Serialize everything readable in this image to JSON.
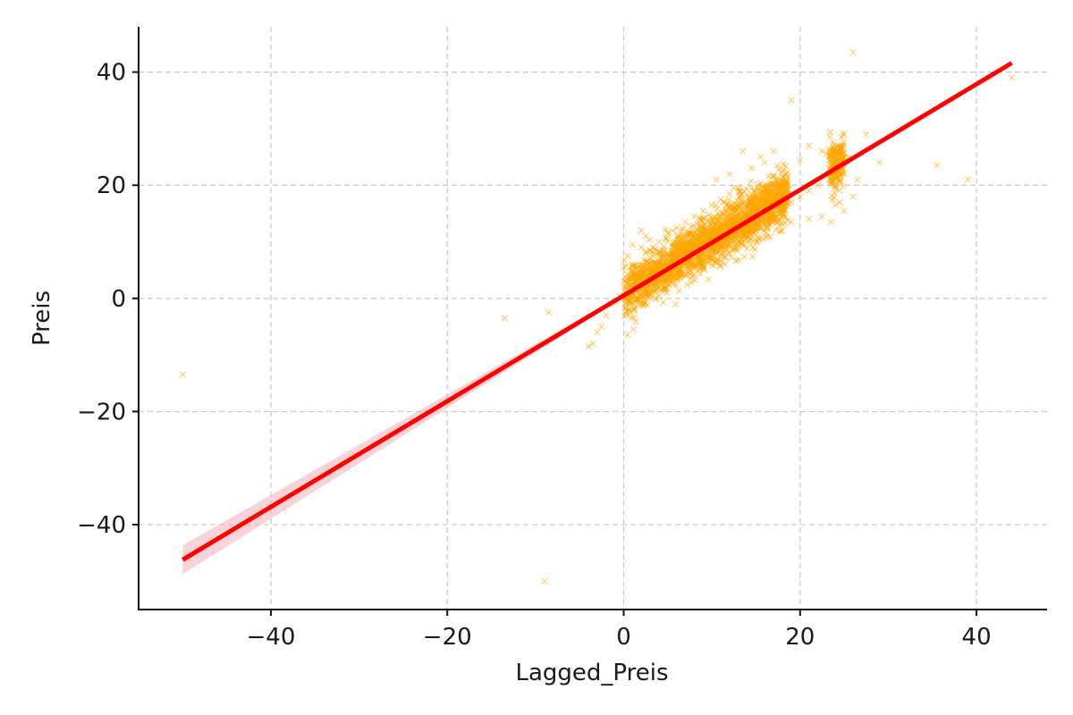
{
  "chart_data": {
    "type": "scatter",
    "title": "",
    "xlabel": "Lagged_Preis",
    "ylabel": "Preis",
    "xlim": [
      -55,
      48
    ],
    "ylim": [
      -55,
      48
    ],
    "x_ticks": [
      -40,
      -20,
      0,
      20,
      40
    ],
    "y_ticks": [
      -40,
      -20,
      0,
      20,
      40
    ],
    "x_tick_labels": [
      "−40",
      "−20",
      "0",
      "20",
      "40"
    ],
    "y_tick_labels": [
      "−40",
      "−20",
      "0",
      "20",
      "40"
    ],
    "grid": true,
    "legend": "none",
    "colors": {
      "points": "#FFA500",
      "regression_line": "#FF0000",
      "confidence_band": "#F7B6BD"
    },
    "marker": "x",
    "regression_line": {
      "x": [
        -50,
        44
      ],
      "y": [
        -46.2,
        41.6
      ]
    },
    "cluster": {
      "x_range": [
        0,
        25
      ],
      "slope": 0.95,
      "intercept": 0.8,
      "spread": 2.2,
      "count": 2500
    },
    "series": [
      {
        "values": [
          [
            -50,
            -13.5
          ],
          [
            -13.5,
            -3.5
          ],
          [
            -8.5,
            -2.5
          ],
          [
            -9,
            -50
          ],
          [
            -4,
            -8.5
          ],
          [
            -3.5,
            -8
          ],
          [
            -2.5,
            -5
          ],
          [
            -2,
            -3
          ],
          [
            -1.5,
            -1
          ],
          [
            -1,
            -0.5
          ],
          [
            -3,
            -6
          ],
          [
            -0.5,
            0.5
          ],
          [
            26,
            43.5
          ],
          [
            19,
            35
          ],
          [
            44,
            39
          ],
          [
            39,
            21
          ],
          [
            35.5,
            23.5
          ],
          [
            29,
            24
          ],
          [
            27.5,
            29
          ],
          [
            26,
            18
          ],
          [
            25,
            15.5
          ],
          [
            23.5,
            13.5
          ],
          [
            24.5,
            17
          ],
          [
            22.5,
            14.5
          ],
          [
            21,
            14
          ],
          [
            22.5,
            26
          ],
          [
            21,
            27
          ],
          [
            20,
            24.5
          ],
          [
            23,
            25.5
          ],
          [
            25.5,
            25
          ],
          [
            24,
            16.5
          ],
          [
            26.5,
            21
          ],
          [
            25,
            22
          ],
          [
            13.5,
            26
          ],
          [
            14.5,
            23
          ],
          [
            15.5,
            25
          ],
          [
            17,
            26
          ],
          [
            12,
            22
          ],
          [
            10.5,
            21
          ],
          [
            16,
            24
          ],
          [
            0,
            5.5
          ],
          [
            0.5,
            7.5
          ],
          [
            1,
            9.5
          ],
          [
            2,
            12
          ],
          [
            0.3,
            2.5
          ],
          [
            0.8,
            -0.5
          ],
          [
            1.5,
            0
          ],
          [
            3,
            1
          ],
          [
            4,
            2
          ],
          [
            5,
            2.5
          ],
          [
            6,
            3.5
          ],
          [
            7,
            4
          ],
          [
            8,
            5.5
          ],
          [
            9,
            6
          ],
          [
            10,
            7.5
          ],
          [
            11,
            8.5
          ],
          [
            12,
            9.5
          ],
          [
            13,
            10
          ],
          [
            14,
            11.5
          ],
          [
            15,
            12
          ],
          [
            16,
            13
          ],
          [
            17,
            14
          ],
          [
            18,
            15
          ],
          [
            19,
            17
          ],
          [
            20,
            18
          ],
          [
            21,
            19
          ],
          [
            22,
            20
          ],
          [
            18,
            12
          ],
          [
            19,
            13.5
          ],
          [
            4,
            10
          ],
          [
            5,
            11.5
          ],
          [
            6,
            12.5
          ],
          [
            7,
            13.5
          ],
          [
            8,
            14.5
          ],
          [
            9,
            15.5
          ],
          [
            10,
            16.5
          ],
          [
            11,
            17.5
          ],
          [
            12,
            18.5
          ],
          [
            13,
            19.5
          ],
          [
            3,
            8.5
          ],
          [
            2,
            9
          ],
          [
            1,
            6
          ],
          [
            2.5,
            11
          ]
        ]
      }
    ]
  }
}
